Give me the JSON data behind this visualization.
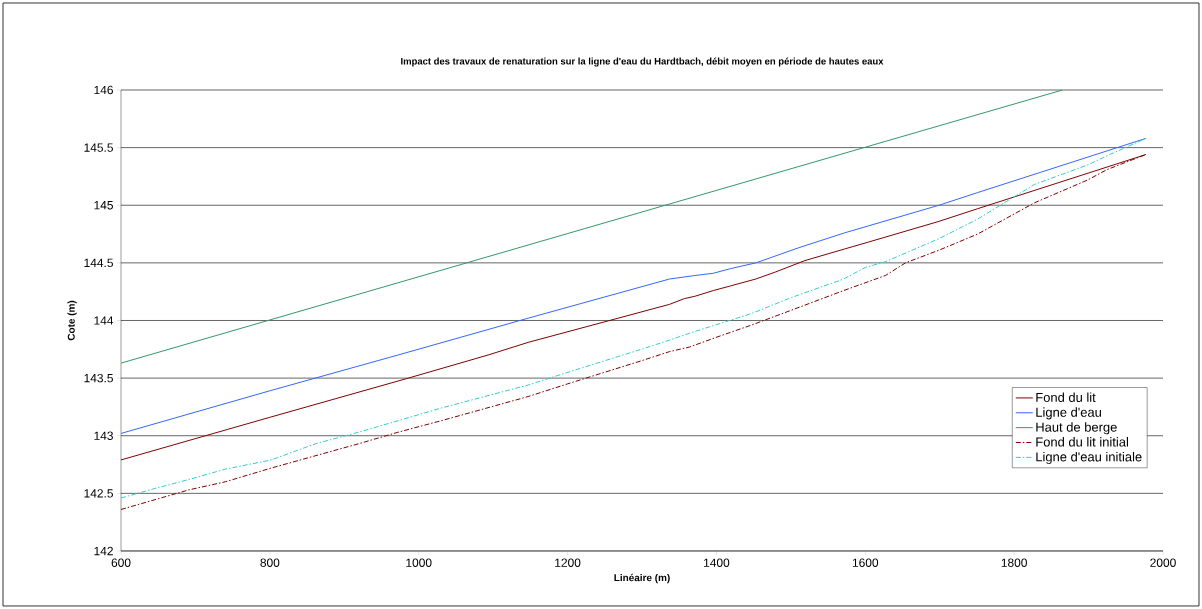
{
  "chart_data": {
    "type": "line",
    "title": "Impact des travaux de renaturation sur la ligne d'eau du Hardtbach, débit moyen en période de hautes eaux",
    "xlabel": "Linéaire (m)",
    "ylabel": "Cote (m)",
    "xlim": [
      600,
      2000
    ],
    "xticks": [
      600,
      800,
      1000,
      1200,
      1400,
      1600,
      1800,
      2000
    ],
    "ylim": [
      142,
      146
    ],
    "yticks": [
      142,
      142.5,
      143,
      143.5,
      144,
      144.5,
      145,
      145.5,
      146
    ],
    "grid": "y",
    "legend": "right",
    "series": [
      {
        "name": "Fond du lit",
        "color": "#800000",
        "line_style": "solid",
        "x": [
          600,
          800,
          986,
          1093,
          1147,
          1337,
          1357,
          1371,
          1396,
          1419,
          1453,
          1479,
          1519,
          1572,
          1604,
          1699,
          1751,
          1977
        ],
        "values": [
          142.79,
          143.16,
          143.5,
          143.7,
          143.81,
          144.14,
          144.19,
          144.21,
          144.26,
          144.3,
          144.36,
          144.42,
          144.52,
          144.62,
          144.68,
          144.86,
          144.97,
          145.44
        ]
      },
      {
        "name": "Ligne d'eau",
        "color": "#3366ff",
        "line_style": "solid",
        "x": [
          600,
          800,
          972,
          1147,
          1337,
          1371,
          1396,
          1419,
          1453,
          1510,
          1572,
          1699,
          1751,
          1977
        ],
        "values": [
          143.02,
          143.39,
          143.7,
          144.02,
          144.36,
          144.39,
          144.41,
          144.45,
          144.5,
          144.63,
          144.76,
          145.0,
          145.11,
          145.58
        ]
      },
      {
        "name": "Haut de berge",
        "color": "#339966",
        "line_style": "solid",
        "x": [
          600,
          1865
        ],
        "values": [
          143.63,
          146
        ]
      },
      {
        "name": "Fond du lit initial",
        "color": "#800000",
        "line_style": "dashdot",
        "x": [
          600,
          691,
          740,
          802,
          919,
          972,
          1030,
          1147,
          1200,
          1299,
          1337,
          1364,
          1398,
          1447,
          1501,
          1571,
          1627,
          1654,
          1699,
          1751,
          1827,
          1899,
          1925,
          1977
        ],
        "values": [
          142.36,
          142.53,
          142.6,
          142.72,
          142.93,
          143.03,
          143.13,
          143.34,
          143.45,
          143.65,
          143.73,
          143.77,
          143.85,
          143.96,
          144.09,
          144.26,
          144.39,
          144.5,
          144.61,
          144.75,
          145.02,
          145.22,
          145.31,
          145.44
        ]
      },
      {
        "name": "Ligne d'eau initiale",
        "color": "#33cccc",
        "line_style": "dashdot",
        "x": [
          600,
          650,
          691,
          740,
          802,
          861,
          919,
          972,
          1030,
          1147,
          1200,
          1299,
          1337,
          1364,
          1398,
          1447,
          1501,
          1571,
          1600,
          1627,
          1699,
          1751,
          1827,
          1899,
          1925,
          1977
        ],
        "values": [
          142.46,
          142.55,
          142.62,
          142.71,
          142.79,
          142.93,
          143.03,
          143.13,
          143.24,
          143.44,
          143.55,
          143.75,
          143.83,
          143.89,
          143.96,
          144.06,
          144.2,
          144.36,
          144.46,
          144.51,
          144.71,
          144.88,
          145.18,
          145.35,
          145.43,
          145.58
        ]
      }
    ]
  }
}
